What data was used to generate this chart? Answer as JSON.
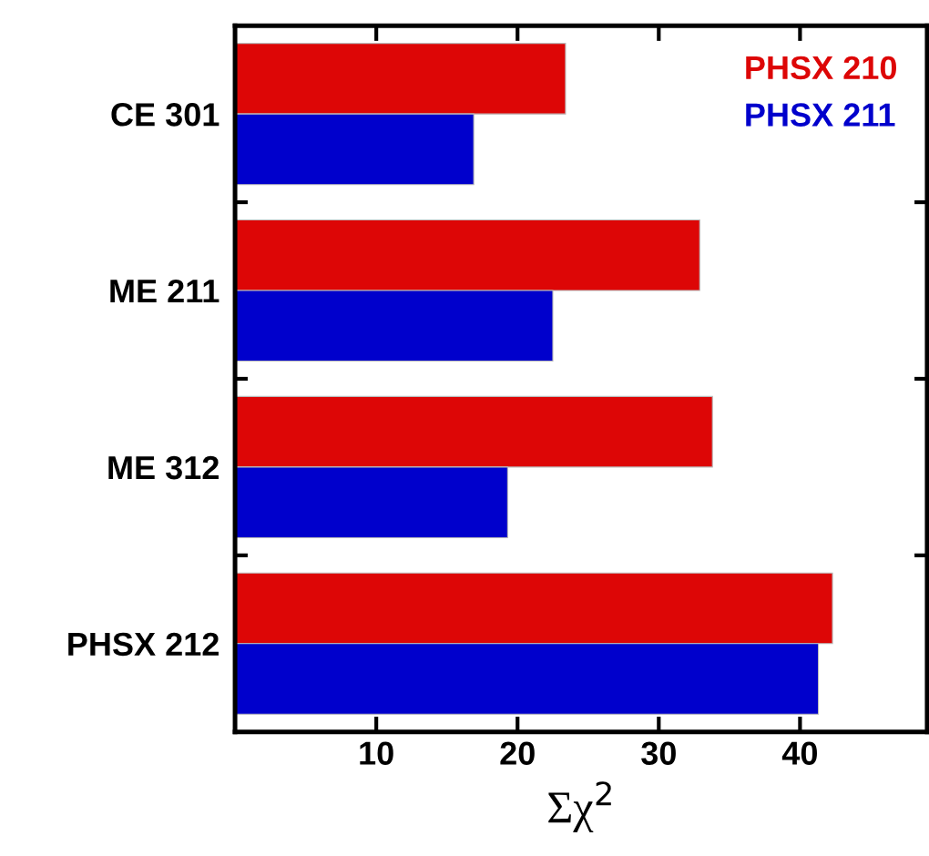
{
  "chart_data": {
    "type": "bar",
    "orientation": "horizontal",
    "xlabel": "Σχ$^{2}$",
    "categories": [
      "CE 301",
      "ME 211",
      "ME 312",
      "PHSX 212"
    ],
    "series": [
      {
        "name": "PHSX 210",
        "color": "#dd0606",
        "values": [
          23.4,
          32.9,
          33.8,
          42.3
        ]
      },
      {
        "name": "PHSX 211",
        "color": "#0000cc",
        "values": [
          16.9,
          22.5,
          19.3,
          41.3
        ]
      }
    ],
    "xlim": [
      0,
      49
    ],
    "xticks": [
      10,
      20,
      30,
      40
    ],
    "grid": false,
    "legend": "top right"
  }
}
